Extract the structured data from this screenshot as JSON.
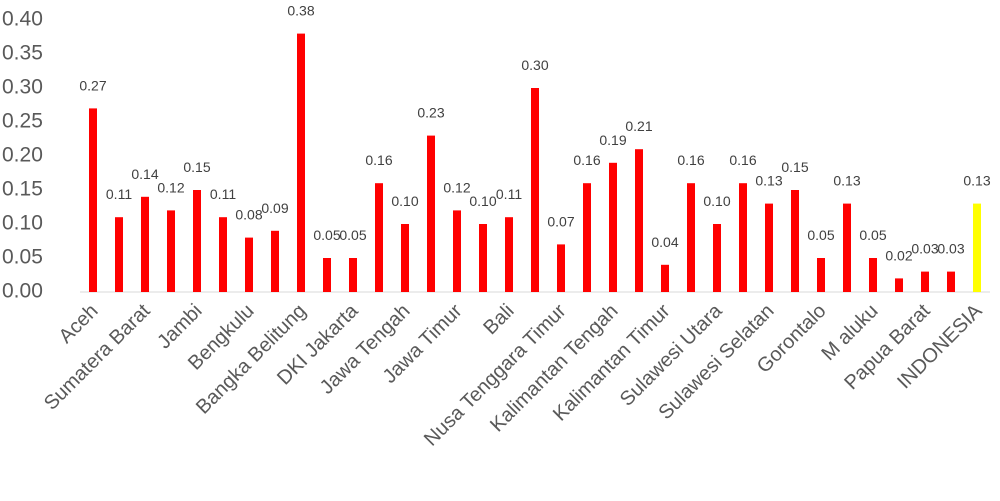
{
  "chart_data": {
    "type": "bar",
    "categories": [
      "Aceh",
      null,
      "Sumatera Barat",
      null,
      "Jambi",
      null,
      "Bengkulu",
      null,
      "Bangka Belitung",
      null,
      "DKI Jakarta",
      null,
      "Jawa Tengah",
      null,
      "Jawa Timur",
      null,
      "Bali",
      null,
      "Nusa Tenggara Timur",
      null,
      "Kalimantan Tengah",
      null,
      "Kalimantan Timur",
      null,
      "Sulawesi Utara",
      null,
      "Sulawesi Selatan",
      null,
      "Gorontalo",
      null,
      "M aluku",
      null,
      "Papua Barat",
      null,
      "INDONESIA"
    ],
    "values": [
      0.27,
      0.11,
      0.14,
      0.12,
      0.15,
      0.11,
      0.08,
      0.09,
      0.38,
      0.05,
      0.05,
      0.16,
      0.1,
      0.23,
      0.12,
      0.1,
      0.11,
      0.3,
      0.07,
      0.16,
      0.19,
      0.21,
      0.04,
      0.16,
      0.1,
      0.16,
      0.13,
      0.15,
      0.05,
      0.13,
      0.05,
      0.02,
      0.03,
      0.03,
      0.13
    ],
    "value_labels": [
      "0.27",
      "0.11",
      "0.14",
      "0.12",
      "0.15",
      "0.11",
      "0.08",
      "0.09",
      "0.38",
      "0.05",
      "0.05",
      "0.16",
      "0.10",
      "0.23",
      "0.12",
      "0.10",
      "0.11",
      "0.30",
      "0.07",
      "0.16",
      "0.19",
      "0.21",
      "0.04",
      "0.16",
      "0.10",
      "0.16",
      "0.13",
      "0.15",
      "0.05",
      "0.13",
      "0.05",
      "0.02",
      "0.03",
      "0.03",
      "0.13"
    ],
    "colors": [
      "#ff0000",
      "#ff0000",
      "#ff0000",
      "#ff0000",
      "#ff0000",
      "#ff0000",
      "#ff0000",
      "#ff0000",
      "#ff0000",
      "#ff0000",
      "#ff0000",
      "#ff0000",
      "#ff0000",
      "#ff0000",
      "#ff0000",
      "#ff0000",
      "#ff0000",
      "#ff0000",
      "#ff0000",
      "#ff0000",
      "#ff0000",
      "#ff0000",
      "#ff0000",
      "#ff0000",
      "#ff0000",
      "#ff0000",
      "#ff0000",
      "#ff0000",
      "#ff0000",
      "#ff0000",
      "#ff0000",
      "#ff0000",
      "#ff0000",
      "#ff0000",
      "#ffff00"
    ],
    "ylim": [
      0,
      0.4
    ],
    "yticks": [
      {
        "value": 0,
        "label": "0.00"
      },
      {
        "value": 0.05,
        "label": "0.05"
      },
      {
        "value": 0.1,
        "label": "0.10"
      },
      {
        "value": 0.15,
        "label": "0.15"
      },
      {
        "value": 0.2,
        "label": "0.20"
      },
      {
        "value": 0.25,
        "label": "0.25"
      },
      {
        "value": 0.3,
        "label": "0.30"
      },
      {
        "value": 0.35,
        "label": "0.35"
      },
      {
        "value": 0.4,
        "label": "0.40"
      }
    ],
    "grid": false
  }
}
